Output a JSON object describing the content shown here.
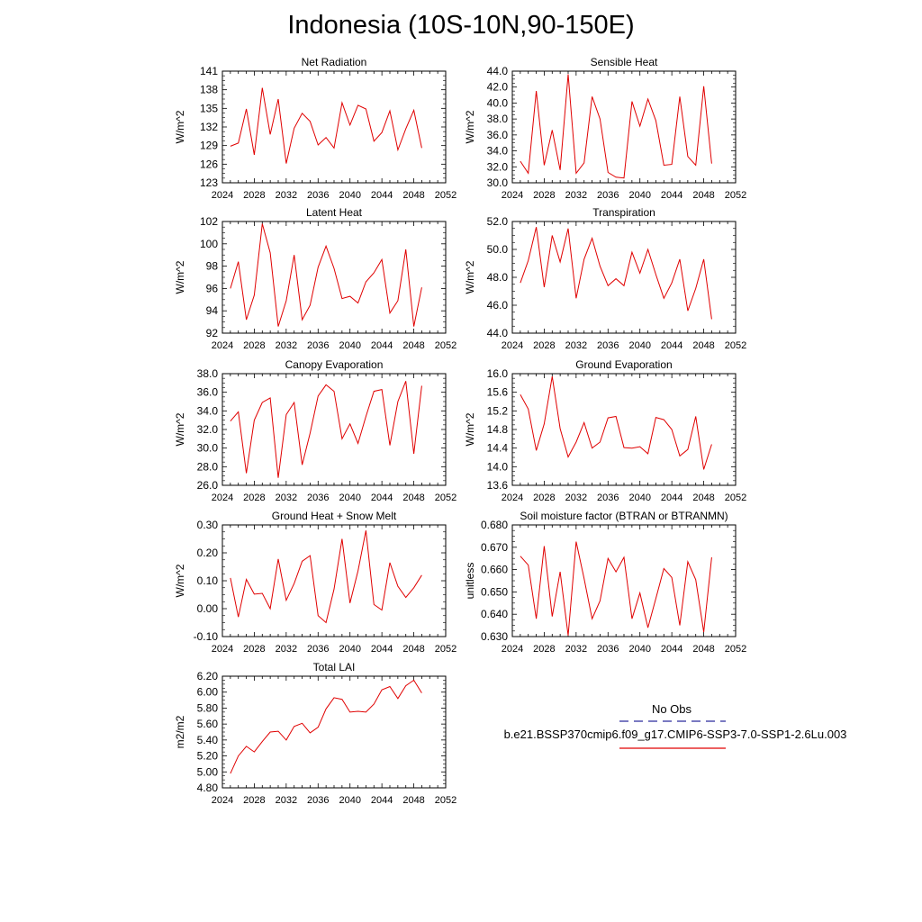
{
  "title": "Indonesia (10S-10N,90-150E)",
  "x_ticks": [
    2024,
    2028,
    2032,
    2036,
    2040,
    2044,
    2048,
    2052
  ],
  "legend": {
    "obs_label": "No Obs",
    "obs_color": "#2b2b9e",
    "case_label": "b.e21.BSSP370cmip6.f09_g17.CMIP6-SSP3-7.0-SSP1-2.6Lu.003",
    "case_color": "#e00000"
  },
  "chart_data": [
    {
      "type": "line",
      "title": "Net Radiation",
      "ylabel": "W/m^2",
      "xlim": [
        2024,
        2052
      ],
      "ylim": [
        123,
        141
      ],
      "yticks": [
        123,
        126,
        129,
        132,
        135,
        138,
        141
      ],
      "ytick_labels": [
        "123",
        "126",
        "129",
        "132",
        "135",
        "138",
        "141"
      ],
      "x": [
        2025,
        2026,
        2027,
        2028,
        2029,
        2030,
        2031,
        2032,
        2033,
        2034,
        2035,
        2036,
        2037,
        2038,
        2039,
        2040,
        2041,
        2042,
        2043,
        2044,
        2045,
        2046,
        2047,
        2048,
        2049
      ],
      "series": [
        {
          "values": [
            128.9,
            129.4,
            134.9,
            127.5,
            138.3,
            130.8,
            136.5,
            126.1,
            131.8,
            134.2,
            132.9,
            129.1,
            130.3,
            128.6,
            135.9,
            132.3,
            135.5,
            134.9,
            129.7,
            131.1,
            134.6,
            128.3,
            131.7,
            134.7,
            128.6
          ]
        }
      ]
    },
    {
      "type": "line",
      "title": "Sensible Heat",
      "ylabel": "W/m^2",
      "xlim": [
        2024,
        2052
      ],
      "ylim": [
        30,
        44
      ],
      "yticks": [
        30,
        32,
        34,
        36,
        38,
        40,
        42,
        44
      ],
      "ytick_labels": [
        "30.0",
        "32.0",
        "34.0",
        "36.0",
        "38.0",
        "40.0",
        "42.0",
        "44.0"
      ],
      "x": [
        2025,
        2026,
        2027,
        2028,
        2029,
        2030,
        2031,
        2032,
        2033,
        2034,
        2035,
        2036,
        2037,
        2038,
        2039,
        2040,
        2041,
        2042,
        2043,
        2044,
        2045,
        2046,
        2047,
        2048,
        2049
      ],
      "series": [
        {
          "values": [
            32.7,
            31.2,
            41.5,
            32.2,
            36.6,
            31.6,
            43.6,
            31.2,
            32.5,
            40.8,
            38.0,
            31.3,
            30.7,
            30.6,
            40.2,
            37.1,
            40.5,
            37.8,
            32.2,
            32.3,
            40.8,
            33.3,
            32.2,
            42.1,
            32.4
          ]
        }
      ]
    },
    {
      "type": "line",
      "title": "Latent Heat",
      "ylabel": "W/m^2",
      "xlim": [
        2024,
        2052
      ],
      "ylim": [
        92,
        102
      ],
      "yticks": [
        92,
        94,
        96,
        98,
        100,
        102
      ],
      "ytick_labels": [
        "92",
        "94",
        "96",
        "98",
        "100",
        "102"
      ],
      "x": [
        2025,
        2026,
        2027,
        2028,
        2029,
        2030,
        2031,
        2032,
        2033,
        2034,
        2035,
        2036,
        2037,
        2038,
        2039,
        2040,
        2041,
        2042,
        2043,
        2044,
        2045,
        2046,
        2047,
        2048,
        2049
      ],
      "series": [
        {
          "values": [
            96.0,
            98.4,
            93.2,
            95.4,
            101.8,
            99.2,
            92.6,
            94.9,
            99.0,
            93.2,
            94.5,
            97.9,
            99.8,
            97.8,
            95.1,
            95.3,
            94.7,
            96.6,
            97.4,
            98.6,
            93.8,
            94.9,
            99.5,
            92.6,
            96.1
          ]
        }
      ]
    },
    {
      "type": "line",
      "title": "Transpiration",
      "ylabel": "W/m^2",
      "xlim": [
        2024,
        2052
      ],
      "ylim": [
        44,
        52
      ],
      "yticks": [
        44,
        46,
        48,
        50,
        52
      ],
      "ytick_labels": [
        "44.0",
        "46.0",
        "48.0",
        "50.0",
        "52.0"
      ],
      "x": [
        2025,
        2026,
        2027,
        2028,
        2029,
        2030,
        2031,
        2032,
        2033,
        2034,
        2035,
        2036,
        2037,
        2038,
        2039,
        2040,
        2041,
        2042,
        2043,
        2044,
        2045,
        2046,
        2047,
        2048,
        2049
      ],
      "series": [
        {
          "values": [
            47.6,
            49.2,
            51.6,
            47.3,
            51.0,
            49.1,
            51.5,
            46.5,
            49.3,
            50.8,
            48.8,
            47.4,
            47.9,
            47.4,
            49.8,
            48.3,
            50.0,
            48.2,
            46.5,
            47.6,
            49.3,
            45.6,
            47.2,
            49.3,
            45.0
          ]
        }
      ]
    },
    {
      "type": "line",
      "title": "Canopy Evaporation",
      "ylabel": "W/m^2",
      "xlim": [
        2024,
        2052
      ],
      "ylim": [
        26,
        38
      ],
      "yticks": [
        26,
        28,
        30,
        32,
        34,
        36,
        38
      ],
      "ytick_labels": [
        "26.0",
        "28.0",
        "30.0",
        "32.0",
        "34.0",
        "36.0",
        "38.0"
      ],
      "x": [
        2025,
        2026,
        2027,
        2028,
        2029,
        2030,
        2031,
        2032,
        2033,
        2034,
        2035,
        2036,
        2037,
        2038,
        2039,
        2040,
        2041,
        2042,
        2043,
        2044,
        2045,
        2046,
        2047,
        2048,
        2049
      ],
      "series": [
        {
          "values": [
            32.9,
            33.9,
            27.3,
            33.0,
            34.9,
            35.4,
            26.8,
            33.6,
            34.9,
            28.2,
            31.6,
            35.6,
            36.8,
            36.1,
            31.0,
            32.6,
            30.5,
            33.4,
            36.1,
            36.3,
            30.3,
            35.0,
            37.2,
            29.4,
            36.7
          ]
        }
      ]
    },
    {
      "type": "line",
      "title": "Ground Evaporation",
      "ylabel": "W/m^2",
      "xlim": [
        2024,
        2052
      ],
      "ylim": [
        13.6,
        16.0
      ],
      "yticks": [
        13.6,
        14.0,
        14.4,
        14.8,
        15.2,
        15.6,
        16.0
      ],
      "ytick_labels": [
        "13.6",
        "14.0",
        "14.4",
        "14.8",
        "15.2",
        "15.6",
        "16.0"
      ],
      "x": [
        2025,
        2026,
        2027,
        2028,
        2029,
        2030,
        2031,
        2032,
        2033,
        2034,
        2035,
        2036,
        2037,
        2038,
        2039,
        2040,
        2041,
        2042,
        2043,
        2044,
        2045,
        2046,
        2047,
        2048,
        2049
      ],
      "series": [
        {
          "values": [
            15.55,
            15.24,
            14.35,
            14.92,
            15.94,
            14.82,
            14.21,
            14.53,
            14.95,
            14.4,
            14.53,
            15.05,
            15.08,
            14.41,
            14.4,
            14.43,
            14.28,
            15.06,
            15.01,
            14.8,
            14.23,
            14.37,
            15.08,
            13.94,
            14.48
          ]
        }
      ]
    },
    {
      "type": "line",
      "title": "Ground Heat + Snow Melt",
      "ylabel": "W/m^2",
      "xlim": [
        2024,
        2052
      ],
      "ylim": [
        -0.1,
        0.3
      ],
      "yticks": [
        -0.1,
        0.0,
        0.1,
        0.2,
        0.3
      ],
      "ytick_labels": [
        "-0.10",
        "0.00",
        "0.10",
        "0.20",
        "0.30"
      ],
      "x": [
        2025,
        2026,
        2027,
        2028,
        2029,
        2030,
        2031,
        2032,
        2033,
        2034,
        2035,
        2036,
        2037,
        2038,
        2039,
        2040,
        2041,
        2042,
        2043,
        2044,
        2045,
        2046,
        2047,
        2048,
        2049
      ],
      "series": [
        {
          "values": [
            0.11,
            -0.03,
            0.105,
            0.052,
            0.055,
            0.0,
            0.178,
            0.03,
            0.09,
            0.17,
            0.19,
            -0.025,
            -0.05,
            0.07,
            0.25,
            0.02,
            0.135,
            0.28,
            0.015,
            -0.005,
            0.165,
            0.08,
            0.04,
            0.075,
            0.12
          ]
        }
      ]
    },
    {
      "type": "line",
      "title": "Soil moisture factor (BTRAN or BTRANMN)",
      "ylabel": "unitless",
      "xlim": [
        2024,
        2052
      ],
      "ylim": [
        0.63,
        0.68
      ],
      "yticks": [
        0.63,
        0.64,
        0.65,
        0.66,
        0.67,
        0.68
      ],
      "ytick_labels": [
        "0.630",
        "0.640",
        "0.650",
        "0.660",
        "0.670",
        "0.680"
      ],
      "x": [
        2025,
        2026,
        2027,
        2028,
        2029,
        2030,
        2031,
        2032,
        2033,
        2034,
        2035,
        2036,
        2037,
        2038,
        2039,
        2040,
        2041,
        2042,
        2043,
        2044,
        2045,
        2046,
        2047,
        2048,
        2049
      ],
      "series": [
        {
          "values": [
            0.666,
            0.662,
            0.638,
            0.6705,
            0.639,
            0.659,
            0.6305,
            0.6725,
            0.656,
            0.638,
            0.646,
            0.665,
            0.659,
            0.6655,
            0.638,
            0.6495,
            0.634,
            0.647,
            0.6605,
            0.6565,
            0.635,
            0.6635,
            0.6555,
            0.632,
            0.6655
          ]
        }
      ]
    },
    {
      "type": "line",
      "title": "Total LAI",
      "ylabel": "m2/m2",
      "xlim": [
        2024,
        2052
      ],
      "ylim": [
        4.8,
        6.2
      ],
      "yticks": [
        4.8,
        5.0,
        5.2,
        5.4,
        5.6,
        5.8,
        6.0,
        6.2
      ],
      "ytick_labels": [
        "4.80",
        "5.00",
        "5.20",
        "5.40",
        "5.60",
        "5.80",
        "6.00",
        "6.20"
      ],
      "x": [
        2025,
        2026,
        2027,
        2028,
        2029,
        2030,
        2031,
        2032,
        2033,
        2034,
        2035,
        2036,
        2037,
        2038,
        2039,
        2040,
        2041,
        2042,
        2043,
        2044,
        2045,
        2046,
        2047,
        2048,
        2049
      ],
      "series": [
        {
          "values": [
            4.98,
            5.2,
            5.32,
            5.25,
            5.38,
            5.5,
            5.51,
            5.4,
            5.57,
            5.61,
            5.49,
            5.56,
            5.79,
            5.93,
            5.91,
            5.75,
            5.76,
            5.75,
            5.85,
            6.03,
            6.07,
            5.92,
            6.08,
            6.15,
            5.99
          ]
        }
      ]
    }
  ]
}
